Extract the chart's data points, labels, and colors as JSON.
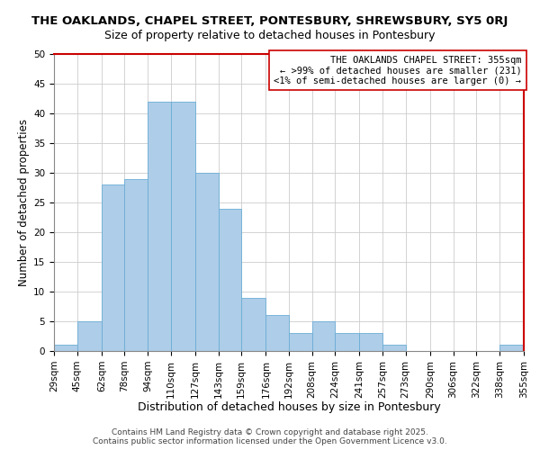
{
  "title": "THE OAKLANDS, CHAPEL STREET, PONTESBURY, SHREWSBURY, SY5 0RJ",
  "subtitle": "Size of property relative to detached houses in Pontesbury",
  "xlabel": "Distribution of detached houses by size in Pontesbury",
  "ylabel": "Number of detached properties",
  "bar_color": "#aecde8",
  "bar_edge_color": "#6aaed6",
  "background_color": "#ffffff",
  "grid_color": "#cccccc",
  "bin_edges": [
    29,
    45,
    62,
    78,
    94,
    110,
    127,
    143,
    159,
    176,
    192,
    208,
    224,
    241,
    257,
    273,
    290,
    306,
    322,
    338,
    355
  ],
  "bin_labels": [
    "29sqm",
    "45sqm",
    "62sqm",
    "78sqm",
    "94sqm",
    "110sqm",
    "127sqm",
    "143sqm",
    "159sqm",
    "176sqm",
    "192sqm",
    "208sqm",
    "224sqm",
    "241sqm",
    "257sqm",
    "273sqm",
    "290sqm",
    "306sqm",
    "322sqm",
    "338sqm",
    "355sqm"
  ],
  "bar_heights": [
    1,
    5,
    28,
    29,
    42,
    42,
    30,
    24,
    9,
    6,
    3,
    5,
    3,
    3,
    1,
    0,
    0,
    0,
    0,
    1
  ],
  "ylim": [
    0,
    50
  ],
  "yticks": [
    0,
    5,
    10,
    15,
    20,
    25,
    30,
    35,
    40,
    45,
    50
  ],
  "annotation_line1": "THE OAKLANDS CHAPEL STREET: 355sqm",
  "annotation_line2": "← >99% of detached houses are smaller (231)",
  "annotation_line3": "<1% of semi-detached houses are larger (0) →",
  "annotation_box_color": "#ffffff",
  "annotation_box_edge_color": "#cc0000",
  "red_border_color": "#cc0000",
  "footer_line1": "Contains HM Land Registry data © Crown copyright and database right 2025.",
  "footer_line2": "Contains public sector information licensed under the Open Government Licence v3.0.",
  "title_fontsize": 9.5,
  "subtitle_fontsize": 9,
  "xlabel_fontsize": 9,
  "ylabel_fontsize": 8.5,
  "tick_fontsize": 7.5,
  "annotation_fontsize": 7.5,
  "footer_fontsize": 6.5
}
